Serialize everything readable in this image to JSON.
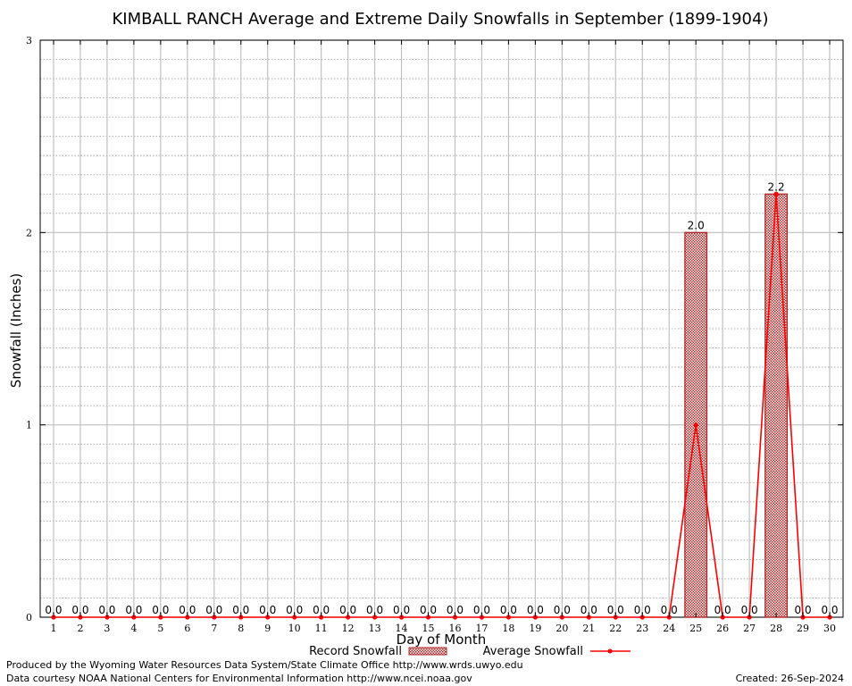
{
  "chart_data": {
    "type": "bar",
    "title": "KIMBALL RANCH Average and Extreme Daily Snowfalls in September (1899-1904)",
    "xlabel": "Day of Month",
    "ylabel": "Snowfall (Inches)",
    "ylim": [
      0,
      3
    ],
    "yticks": [
      "0",
      "1",
      "2",
      "3"
    ],
    "grid": true,
    "legend_position": "bottom",
    "categories": [
      "1",
      "2",
      "3",
      "4",
      "5",
      "6",
      "7",
      "8",
      "9",
      "10",
      "11",
      "12",
      "13",
      "14",
      "15",
      "16",
      "17",
      "18",
      "19",
      "20",
      "21",
      "22",
      "23",
      "24",
      "25",
      "26",
      "27",
      "28",
      "29",
      "30"
    ],
    "series": [
      {
        "name": "Record Snowfall",
        "type": "bar",
        "color": "#b22222",
        "values": [
          0,
          0,
          0,
          0,
          0,
          0,
          0,
          0,
          0,
          0,
          0,
          0,
          0,
          0,
          0,
          0,
          0,
          0,
          0,
          0,
          0,
          0,
          0,
          0,
          2.0,
          0,
          0,
          2.2,
          0,
          0
        ]
      },
      {
        "name": "Average Snowfall",
        "type": "line",
        "color": "#ff0000",
        "values": [
          0,
          0,
          0,
          0,
          0,
          0,
          0,
          0,
          0,
          0,
          0,
          0,
          0,
          0,
          0,
          0,
          0,
          0,
          0,
          0,
          0,
          0,
          0,
          0,
          1.0,
          0,
          0,
          2.2,
          0,
          0
        ]
      }
    ],
    "data_labels": [
      "0.0",
      "0.0",
      "0.0",
      "0.0",
      "0.0",
      "0.0",
      "0.0",
      "0.0",
      "0.0",
      "0.0",
      "0.0",
      "0.0",
      "0.0",
      "0.0",
      "0.0",
      "0.0",
      "0.0",
      "0.0",
      "0.0",
      "0.0",
      "0.0",
      "0.0",
      "0.0",
      "0.0",
      "2.0",
      "0.0",
      "0.0",
      "2.2",
      "0.0",
      "0.0"
    ]
  },
  "footer": {
    "produced_by": "Produced by the Wyoming Water Resources Data System/State Climate Office http://www.wrds.uwyo.edu",
    "courtesy": "Data courtesy NOAA National Centers for Environmental Information http://www.ncei.noaa.gov",
    "created": "Created:  26-Sep-2024"
  }
}
